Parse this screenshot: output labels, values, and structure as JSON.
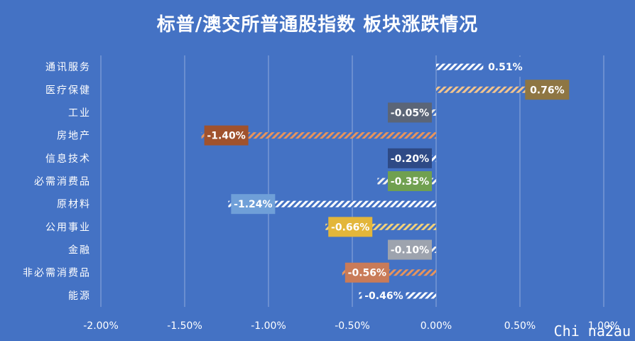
{
  "watermark": "Chi na2au",
  "chart_data": {
    "type": "bar",
    "orientation": "horizontal",
    "title": "标普/澳交所普通股指数 板块涨跌情况",
    "xlabel": "",
    "ylabel": "",
    "xlim": [
      -0.02,
      0.01
    ],
    "xticks": [
      "-2.00%",
      "-1.50%",
      "-1.00%",
      "-0.50%",
      "0.00%",
      "0.50%",
      "1.00%"
    ],
    "grid": true,
    "categories": [
      "通讯服务",
      "医疗保健",
      "工业",
      "房地产",
      "信息技术",
      "必需消费品",
      "原材料",
      "公用事业",
      "金融",
      "非必需消费品",
      "能源"
    ],
    "values": [
      0.0051,
      0.0076,
      -0.0005,
      -0.014,
      -0.002,
      -0.0035,
      -0.0124,
      -0.0066,
      -0.001,
      -0.0056,
      -0.0046
    ],
    "labels": [
      "0.51%",
      "0.76%",
      "-0.05%",
      "-1.40%",
      "-0.20%",
      "-0.35%",
      "-1.24%",
      "-0.66%",
      "-0.10%",
      "-0.56%",
      "-0.46%"
    ],
    "label_colors": [
      "#4472C4",
      "#8E7643",
      "#5B6577",
      "#A0522D",
      "#2E4A86",
      "#70A050",
      "#6F9FD8",
      "#E3B63A",
      "#9DA3AE",
      "#C97B58",
      "#4472C4"
    ],
    "bar_colors": [
      "#FFFFFF",
      "#F2C48E",
      "#E5E5E5",
      "#E8945C",
      "#FFFFFF",
      "#F0F0F0",
      "#FFFFFF",
      "#F3D27A",
      "#F0F0F0",
      "#E8945C",
      "#FFFFFF"
    ]
  }
}
